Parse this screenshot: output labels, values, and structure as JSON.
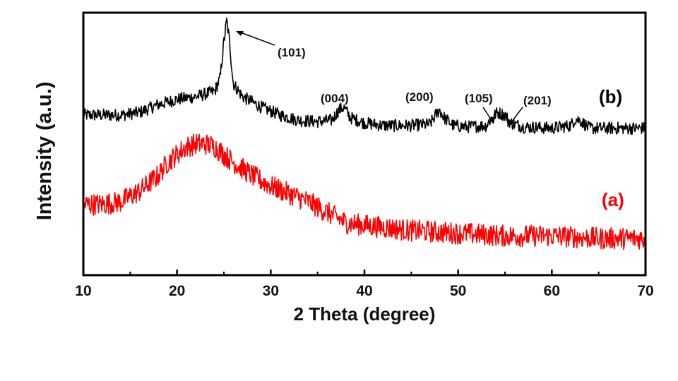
{
  "chart_data": {
    "type": "line",
    "xlabel": "2 Theta (degree)",
    "ylabel": "Intensity (a.u.)",
    "xlim": [
      10,
      70
    ],
    "ylim": [
      0,
      100
    ],
    "xticks": [
      10,
      20,
      30,
      40,
      50,
      60,
      70
    ],
    "yticks_shown": false,
    "grid": false,
    "series": [
      {
        "name": "(b)",
        "color": "#000000",
        "points": [
          [
            10,
            61
          ],
          [
            12,
            61
          ],
          [
            14,
            61
          ],
          [
            16,
            62
          ],
          [
            18,
            65
          ],
          [
            20,
            67
          ],
          [
            22,
            68
          ],
          [
            24,
            70
          ],
          [
            24.6,
            75
          ],
          [
            25.0,
            89
          ],
          [
            25.3,
            97
          ],
          [
            25.6,
            89
          ],
          [
            26.0,
            73
          ],
          [
            27,
            68
          ],
          [
            29,
            64
          ],
          [
            31,
            61
          ],
          [
            33,
            59
          ],
          [
            35,
            58.5
          ],
          [
            36.5,
            59
          ],
          [
            37.3,
            63
          ],
          [
            37.8,
            64
          ],
          [
            38.5,
            60
          ],
          [
            40,
            58
          ],
          [
            42,
            57
          ],
          [
            45,
            57
          ],
          [
            47,
            57.5
          ],
          [
            47.6,
            61
          ],
          [
            48.0,
            63
          ],
          [
            48.5,
            60
          ],
          [
            49.5,
            57
          ],
          [
            51,
            56.5
          ],
          [
            53,
            57
          ],
          [
            53.6,
            60
          ],
          [
            54.2,
            62
          ],
          [
            55,
            61
          ],
          [
            55.6,
            58
          ],
          [
            57,
            56.5
          ],
          [
            60,
            56
          ],
          [
            62,
            57
          ],
          [
            62.5,
            59.5
          ],
          [
            63,
            59
          ],
          [
            64,
            56
          ],
          [
            66,
            56
          ],
          [
            68,
            56
          ],
          [
            70,
            56
          ]
        ]
      },
      {
        "name": "(a)",
        "color": "#ff0000",
        "points": [
          [
            10,
            27
          ],
          [
            12,
            27
          ],
          [
            14,
            28
          ],
          [
            16,
            32
          ],
          [
            18,
            38
          ],
          [
            19,
            43
          ],
          [
            20,
            46
          ],
          [
            21,
            49
          ],
          [
            22,
            50
          ],
          [
            23,
            50
          ],
          [
            24,
            49
          ],
          [
            25,
            46
          ],
          [
            26,
            43
          ],
          [
            28,
            38
          ],
          [
            30,
            34
          ],
          [
            32,
            31
          ],
          [
            34,
            28
          ],
          [
            36,
            24
          ],
          [
            38,
            20
          ],
          [
            40,
            19
          ],
          [
            45,
            17
          ],
          [
            50,
            16
          ],
          [
            55,
            15
          ],
          [
            60,
            15
          ],
          [
            65,
            14
          ],
          [
            70,
            14
          ]
        ]
      }
    ],
    "annotations": [
      {
        "text": "(101)",
        "x": 25.3,
        "y": 97,
        "arrow": true
      },
      {
        "text": "(004)",
        "x": 37.7,
        "y": 64
      },
      {
        "text": "(200)",
        "x": 47.9,
        "y": 63
      },
      {
        "text": "(105)",
        "x": 53.7,
        "y": 62,
        "arrow": true
      },
      {
        "text": "(201)",
        "x": 55.0,
        "y": 61,
        "arrow": true
      }
    ],
    "series_labels": [
      {
        "text": "(b)",
        "color": "#000000"
      },
      {
        "text": "(a)",
        "color": "#ff0000"
      }
    ]
  }
}
